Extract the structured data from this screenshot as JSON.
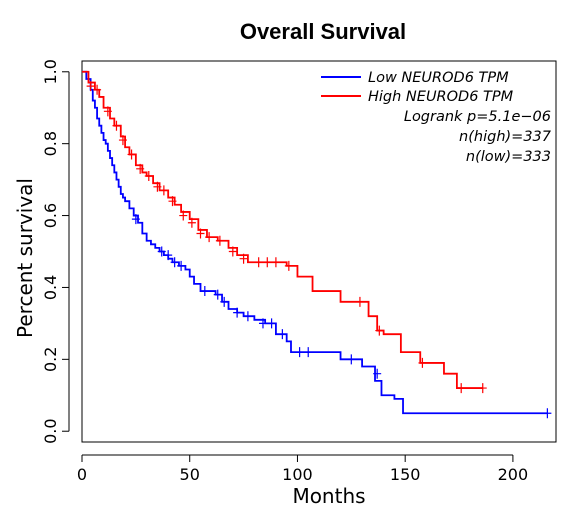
{
  "chart_data": {
    "type": "line",
    "title": "Overall Survival",
    "xlabel": "Months",
    "ylabel": "Percent survival",
    "xlim": [
      0,
      220
    ],
    "ylim": [
      -0.03,
      1.03
    ],
    "xticks": [
      0,
      50,
      100,
      150,
      200
    ],
    "yticks": [
      0.0,
      0.2,
      0.4,
      0.6,
      0.8,
      1.0
    ],
    "xtick_labels": [
      "0",
      "50",
      "100",
      "150",
      "200"
    ],
    "ytick_labels": [
      "0.0",
      "0.2",
      "0.4",
      "0.6",
      "0.8",
      "1.0"
    ],
    "grid": false,
    "legend_position": "top-right",
    "series": [
      {
        "name": "Low NEUROD6 TPM",
        "color": "#0000ff",
        "x": [
          0,
          2,
          4,
          5,
          6,
          7,
          8,
          9,
          10,
          11,
          12,
          13,
          14,
          15,
          16,
          17,
          18,
          19,
          20,
          22,
          24,
          26,
          28,
          30,
          32,
          34,
          36,
          38,
          40,
          42,
          45,
          48,
          50,
          52,
          55,
          58,
          62,
          65,
          68,
          72,
          75,
          80,
          85,
          90,
          95,
          97,
          100,
          108,
          120,
          130,
          136,
          139,
          145,
          149,
          216
        ],
        "y": [
          1.0,
          0.98,
          0.95,
          0.92,
          0.9,
          0.87,
          0.85,
          0.83,
          0.81,
          0.8,
          0.78,
          0.76,
          0.74,
          0.72,
          0.7,
          0.68,
          0.66,
          0.65,
          0.64,
          0.62,
          0.6,
          0.58,
          0.55,
          0.53,
          0.52,
          0.51,
          0.5,
          0.49,
          0.48,
          0.47,
          0.46,
          0.45,
          0.43,
          0.41,
          0.39,
          0.39,
          0.38,
          0.36,
          0.34,
          0.33,
          0.32,
          0.31,
          0.3,
          0.27,
          0.25,
          0.22,
          0.22,
          0.22,
          0.2,
          0.18,
          0.14,
          0.1,
          0.09,
          0.05,
          0.05
        ],
        "censor_x": [
          25,
          37,
          40,
          43,
          46,
          57,
          63,
          66,
          72,
          77,
          84,
          88,
          93,
          101,
          105,
          125,
          137,
          216
        ],
        "censor_y": [
          0.59,
          0.5,
          0.49,
          0.47,
          0.46,
          0.39,
          0.38,
          0.36,
          0.33,
          0.32,
          0.3,
          0.3,
          0.27,
          0.22,
          0.22,
          0.2,
          0.16,
          0.05
        ]
      },
      {
        "name": "High NEUROD6 TPM",
        "color": "#ff0000",
        "x": [
          0,
          3,
          6,
          8,
          10,
          13,
          15,
          18,
          20,
          22,
          25,
          28,
          30,
          33,
          36,
          40,
          43,
          46,
          50,
          54,
          58,
          63,
          68,
          72,
          77,
          80,
          95,
          100,
          107,
          115,
          120,
          133,
          137,
          140,
          148,
          157,
          168,
          174,
          186
        ],
        "y": [
          1.0,
          0.97,
          0.95,
          0.93,
          0.9,
          0.87,
          0.85,
          0.82,
          0.79,
          0.77,
          0.74,
          0.72,
          0.71,
          0.69,
          0.67,
          0.65,
          0.63,
          0.61,
          0.59,
          0.56,
          0.54,
          0.53,
          0.51,
          0.49,
          0.47,
          0.47,
          0.46,
          0.43,
          0.39,
          0.39,
          0.36,
          0.32,
          0.28,
          0.27,
          0.22,
          0.19,
          0.16,
          0.12,
          0.12
        ]
      }
    ],
    "high_censor": {
      "x": [
        4,
        7,
        12,
        16,
        19,
        23,
        27,
        31,
        35,
        38,
        42,
        47,
        51,
        55,
        59,
        64,
        70,
        75,
        82,
        86,
        90,
        96,
        129,
        138,
        158,
        176,
        186
      ],
      "y": [
        0.96,
        0.95,
        0.89,
        0.85,
        0.81,
        0.77,
        0.73,
        0.71,
        0.68,
        0.67,
        0.64,
        0.6,
        0.58,
        0.55,
        0.54,
        0.53,
        0.5,
        0.48,
        0.47,
        0.47,
        0.47,
        0.46,
        0.36,
        0.28,
        0.19,
        0.12,
        0.12
      ]
    },
    "annotations": [
      "Logrank p=5.1e−06",
      "n(high)=337",
      "n(low)=333"
    ]
  }
}
